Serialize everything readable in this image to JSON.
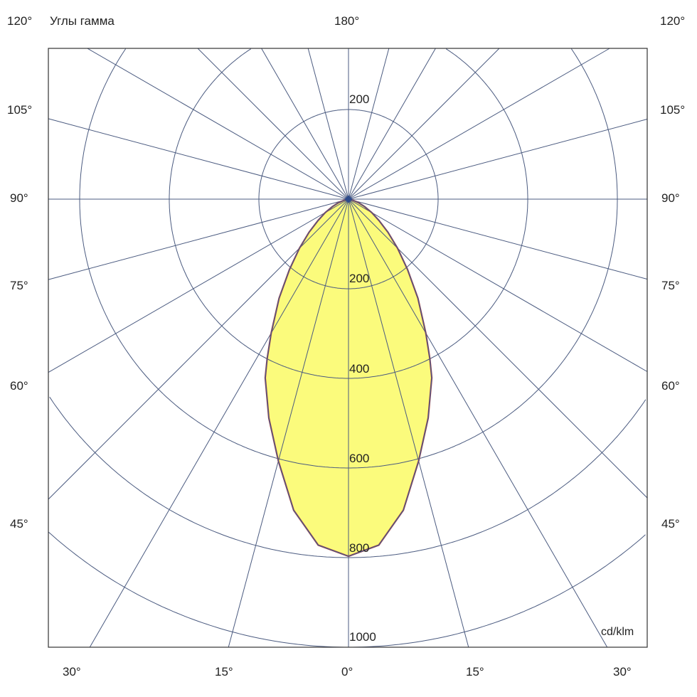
{
  "chart_data": {
    "type": "polar",
    "title": "Углы гамма",
    "unit": "cd/klm",
    "radial_ticks": [
      200,
      400,
      600,
      800,
      1000
    ],
    "radial_top_label": "200",
    "rmax": 1000,
    "angle_step_deg": 15,
    "angle_labels": {
      "top": "180°",
      "left": [
        "120°",
        "105°",
        "90°",
        "75°",
        "60°",
        "45°"
      ],
      "right": [
        "120°",
        "105°",
        "90°",
        "75°",
        "60°",
        "45°"
      ],
      "bottom": [
        "30°",
        "15°",
        "0°",
        "15°",
        "30°"
      ]
    },
    "grid": true,
    "symmetric": true,
    "series": [
      {
        "angles_deg": [
          0,
          5,
          10,
          15,
          20,
          25,
          27,
          30,
          35,
          40,
          45,
          50,
          55,
          60,
          65,
          70,
          75,
          80,
          85,
          90
        ],
        "values": [
          797,
          775,
          705,
          605,
          520,
          440,
          400,
          345,
          270,
          205,
          155,
          115,
          83,
          60,
          40,
          25,
          12,
          5,
          1,
          0
        ]
      }
    ],
    "colors": {
      "fill": "#fbfb7c",
      "grid": "#4b5b80",
      "outline_a": "#c0392b",
      "outline_b": "#4a5a8a"
    }
  }
}
